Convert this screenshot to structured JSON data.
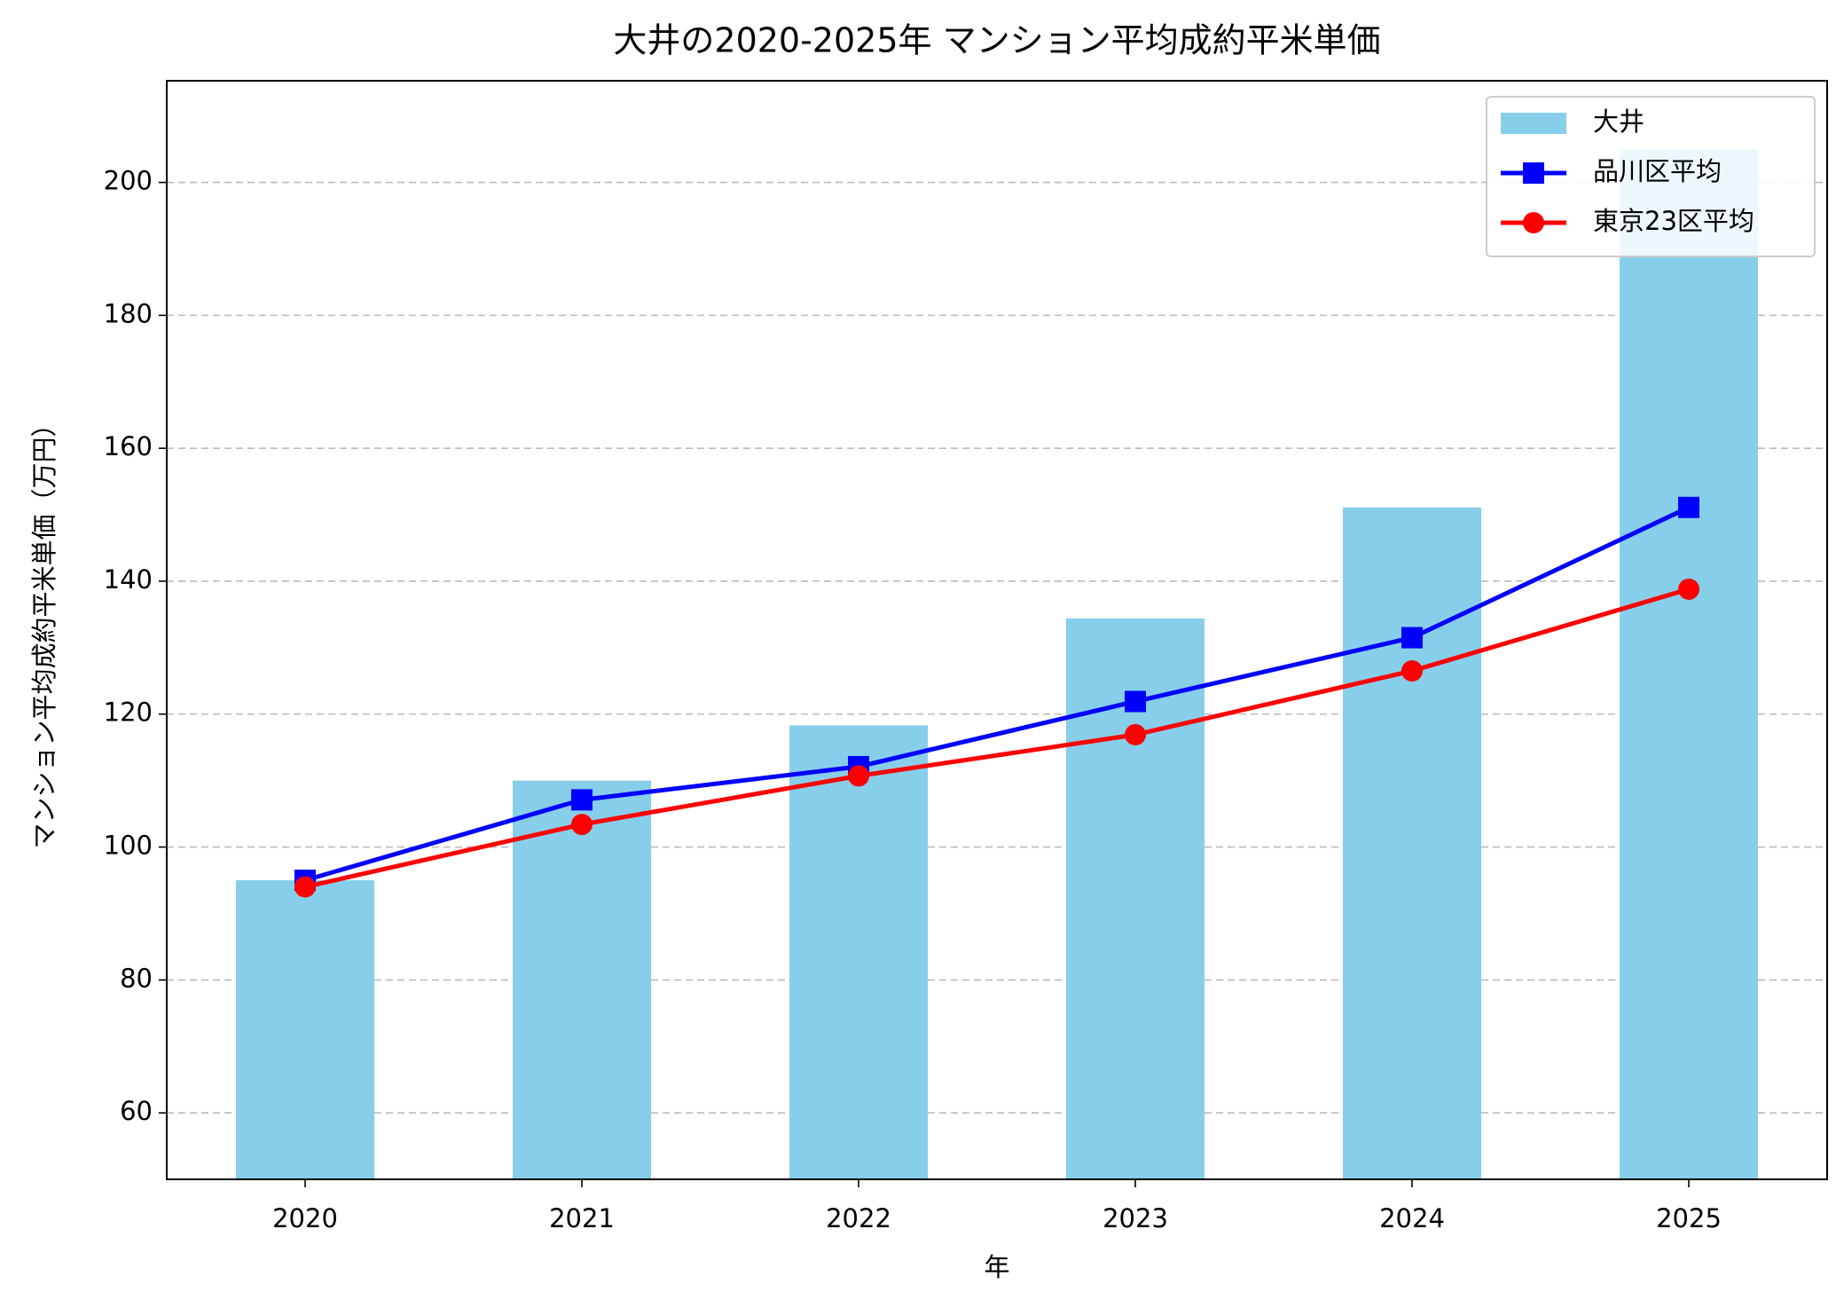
{
  "chart_data": {
    "type": "bar_line",
    "title": "大井の2020-2025年 マンション平均成約平米単価",
    "x_label": "年",
    "y_label": "マンション平均成約平米単価（万円）",
    "categories": [
      "2020",
      "2021",
      "2022",
      "2023",
      "2024",
      "2025"
    ],
    "series": [
      {
        "name": "大井",
        "type": "bar",
        "color": "#87ceeb",
        "values": [
          95,
          110,
          118.3,
          134.4,
          151.1,
          205
        ]
      },
      {
        "name": "品川区平均",
        "type": "line",
        "marker": "square",
        "color": "#0000ff",
        "values": [
          95,
          107.1,
          112.1,
          121.9,
          131.5,
          151.1
        ]
      },
      {
        "name": "東京23区平均",
        "type": "line",
        "marker": "circle",
        "color": "#ff0000",
        "values": [
          94,
          103.4,
          110.7,
          116.9,
          126.5,
          138.8
        ]
      }
    ],
    "ylim": [
      50,
      215.3
    ],
    "yticks": [
      60,
      80,
      100,
      120,
      140,
      160,
      180,
      200
    ],
    "grid": true,
    "legend": "upper right"
  }
}
